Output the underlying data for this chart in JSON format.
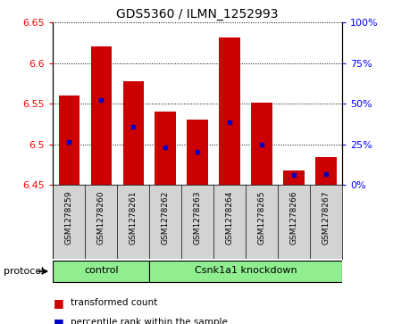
{
  "title": "GDS5360 / ILMN_1252993",
  "samples": [
    "GSM1278259",
    "GSM1278260",
    "GSM1278261",
    "GSM1278262",
    "GSM1278263",
    "GSM1278264",
    "GSM1278265",
    "GSM1278266",
    "GSM1278267"
  ],
  "bar_bottom": 6.45,
  "bar_tops": [
    6.56,
    6.621,
    6.578,
    6.54,
    6.53,
    6.632,
    6.551,
    6.468,
    6.484
  ],
  "percentile_values": [
    6.503,
    6.555,
    6.522,
    6.496,
    6.491,
    6.527,
    6.5,
    6.462,
    6.463
  ],
  "bar_color": "#cc0000",
  "percentile_color": "#0000cc",
  "ylim_left": [
    6.45,
    6.65
  ],
  "ylim_right": [
    0,
    100
  ],
  "yticks_left": [
    6.45,
    6.5,
    6.55,
    6.6,
    6.65
  ],
  "ytick_labels_left": [
    "6.45",
    "6.5",
    "6.55",
    "6.6",
    "6.65"
  ],
  "yticks_right": [
    0,
    25,
    50,
    75,
    100
  ],
  "ytick_labels_right": [
    "0%",
    "25%",
    "50%",
    "75%",
    "100%"
  ],
  "control_count": 3,
  "knockdown_count": 6,
  "group_labels": [
    "control",
    "Csnk1a1 knockdown"
  ],
  "group_color": "#90ee90",
  "protocol_label": "protocol",
  "legend_bar_label": "transformed count",
  "legend_dot_label": "percentile rank within the sample",
  "background_color": "#d3d3d3",
  "plot_bg_color": "#ffffff"
}
